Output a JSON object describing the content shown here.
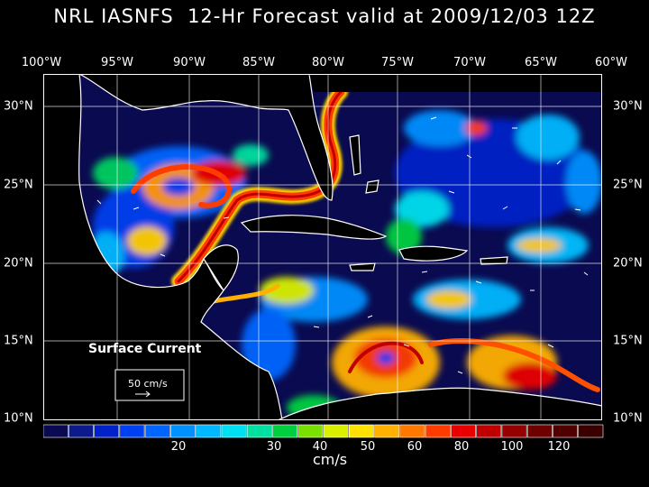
{
  "title": "NRL IASNFS  12-Hr Forecast valid at 2009/12/03 12Z",
  "lon_labels": [
    "100°W",
    "95°W",
    "90°W",
    "85°W",
    "80°W",
    "75°W",
    "70°W",
    "65°W",
    "60°W"
  ],
  "lat_labels": [
    "30°N",
    "25°N",
    "20°N",
    "15°N",
    "10°N"
  ],
  "map_labels": {
    "field_name": "Surface Current",
    "reference_vector": "50 cm/s"
  },
  "colorbar": {
    "tick_labels": [
      "20",
      "30",
      "40",
      "50",
      "60",
      "80",
      "100",
      "120"
    ],
    "unit": "cm/s",
    "colors": [
      "#0a0a50",
      "#0c1a8c",
      "#0022c8",
      "#0040f0",
      "#0066ff",
      "#0090ff",
      "#00b8ff",
      "#00e0f0",
      "#00e0a0",
      "#00d040",
      "#7ae000",
      "#d8f000",
      "#ffe000",
      "#ffb000",
      "#ff7800",
      "#ff3c00",
      "#e80000",
      "#c00000",
      "#960000",
      "#6e0000",
      "#500000",
      "#3a0000"
    ]
  },
  "colors": {
    "background": "#000000",
    "ocean_low": "#0a0a50",
    "land": "#000000",
    "coastline": "#ffffff"
  }
}
